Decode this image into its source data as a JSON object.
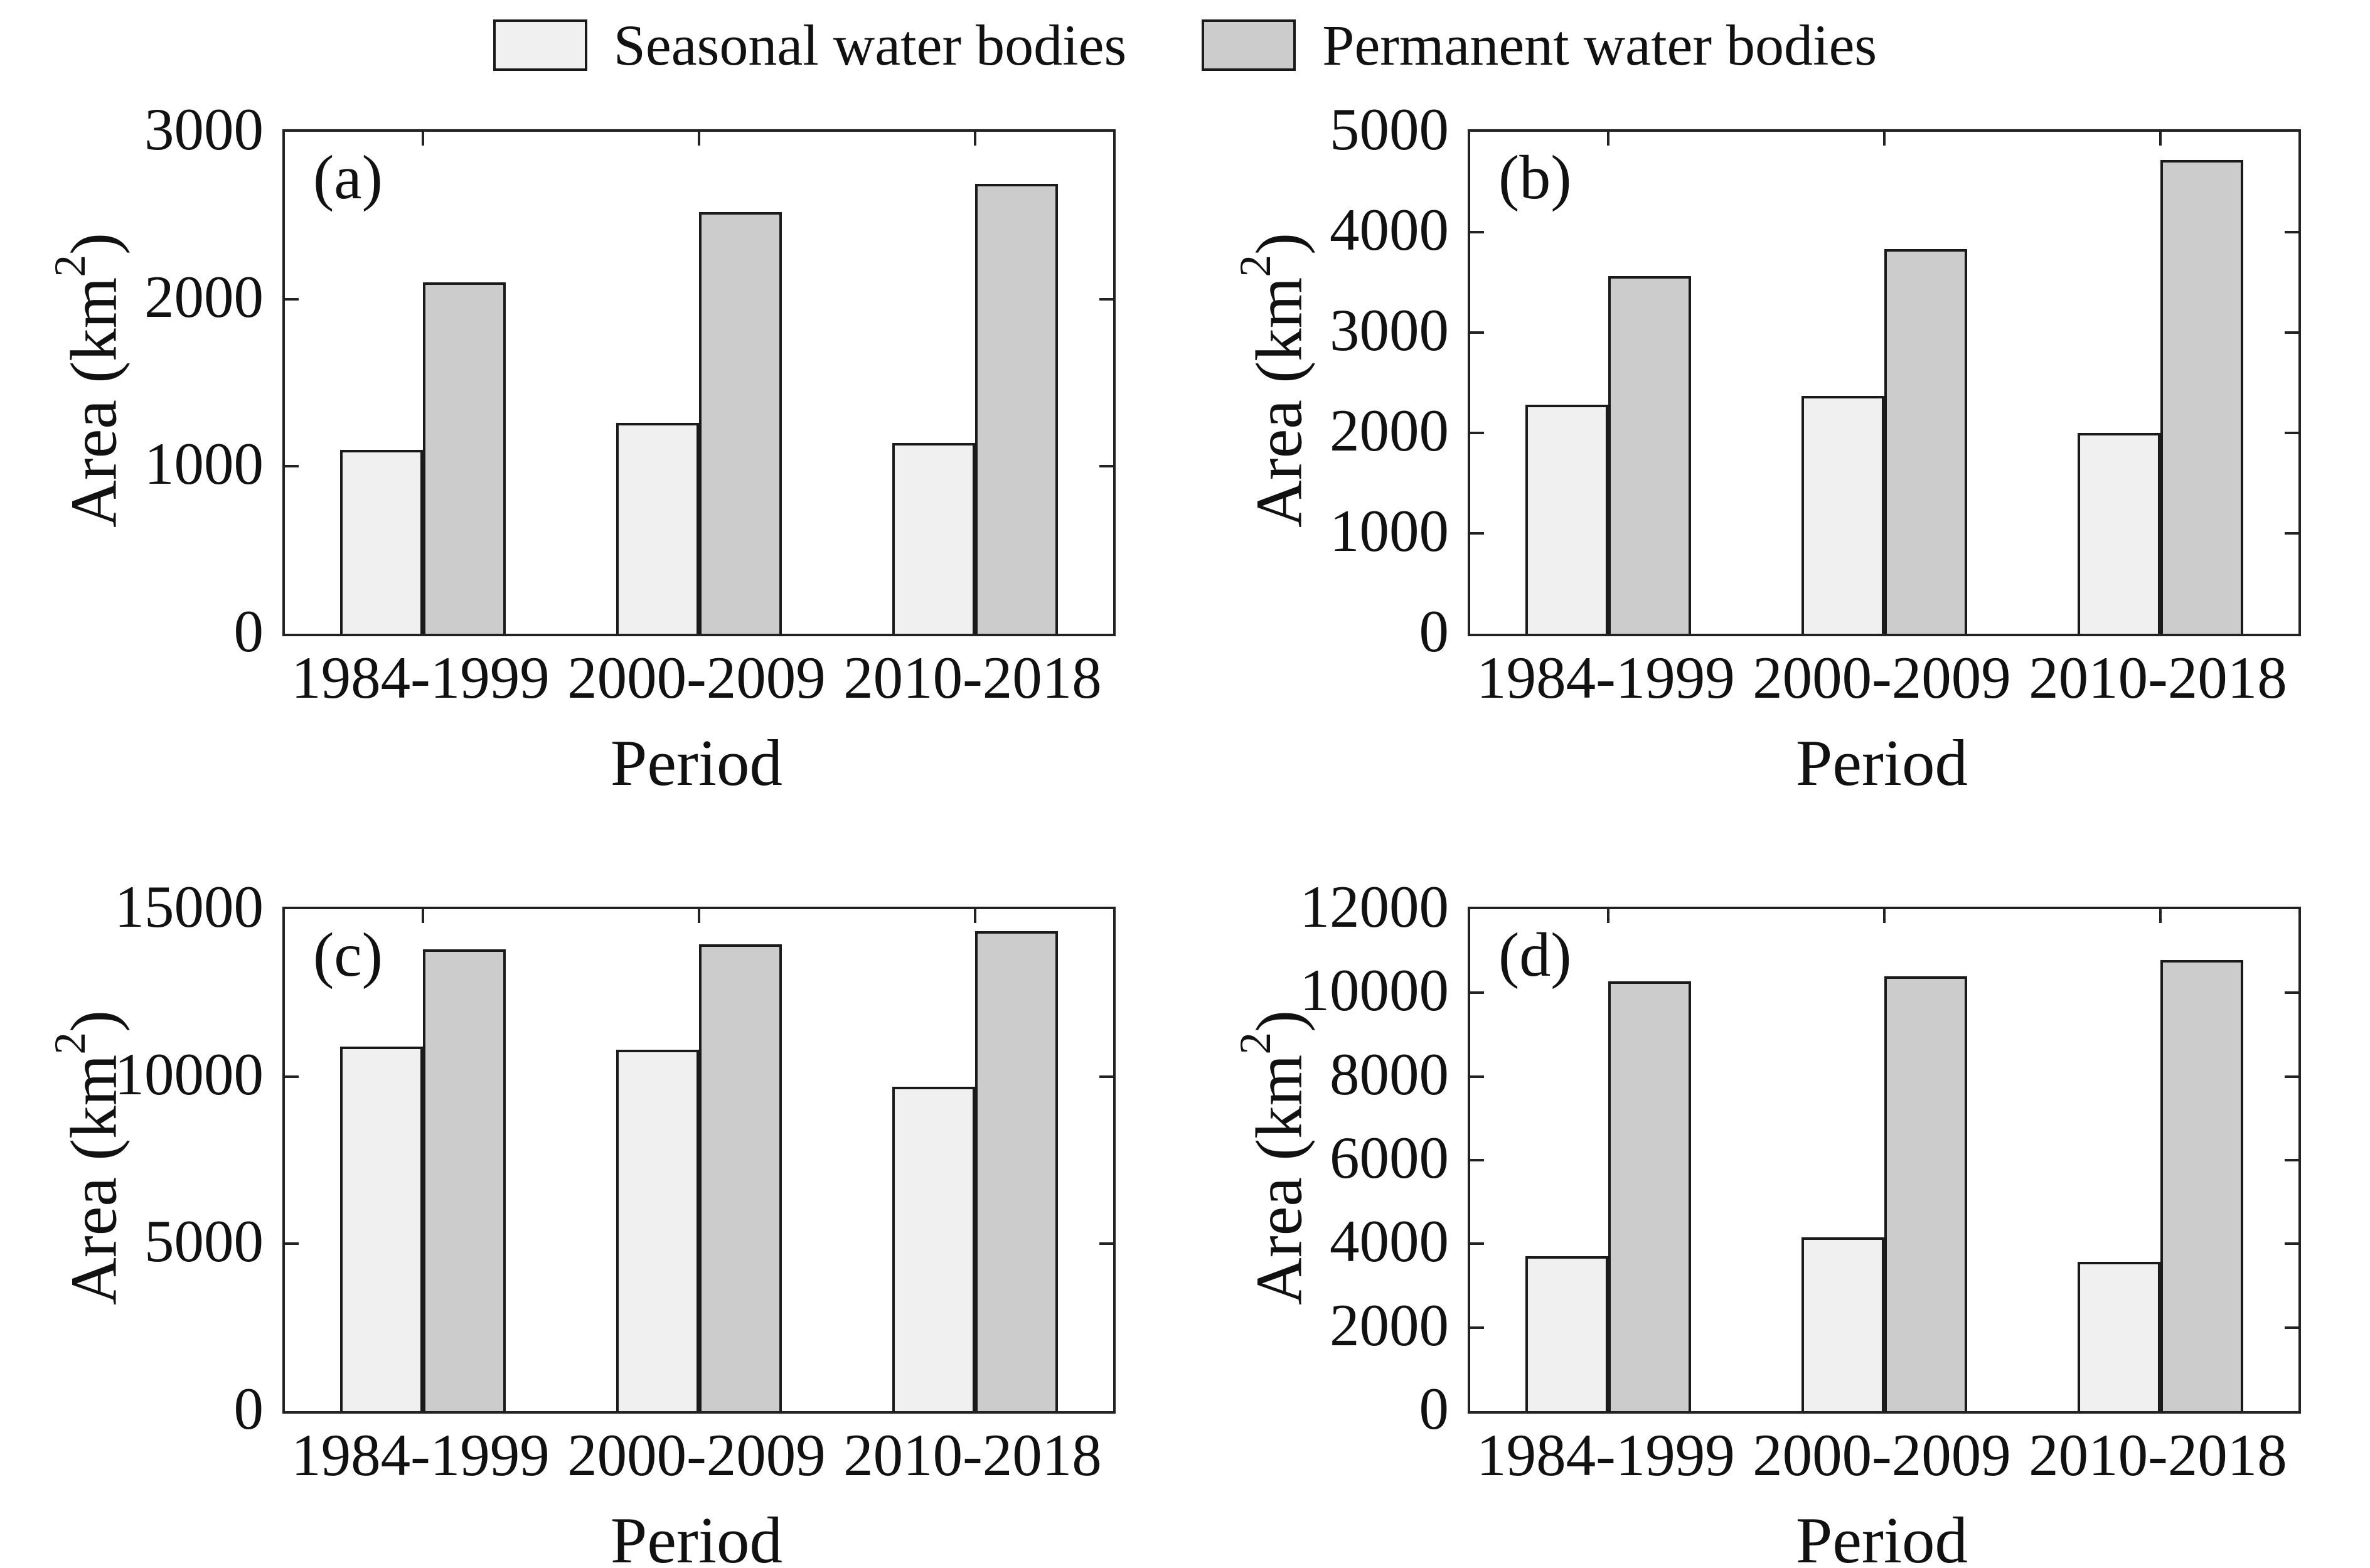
{
  "figure": {
    "background": "#ffffff"
  },
  "legend": {
    "items": [
      {
        "label": "Seasonal water bodies",
        "color": "#f0f0f0"
      },
      {
        "label": "Permanent water bodies",
        "color": "#cccccc"
      }
    ]
  },
  "axes_shared": {
    "xlabel": "Period",
    "ylabel": {
      "text": "Area (km²)",
      "pre": "Area (km",
      "sup": "2",
      "post": ")"
    }
  },
  "style": {
    "bar_colors": [
      "#f0f0f0",
      "#cccccc"
    ],
    "edge_color": "#1a1a1a",
    "axis_color": "#222222"
  },
  "chart_data": [
    {
      "type": "bar",
      "panel_label": "(a)",
      "categories": [
        "1984-1999",
        "2000-2009",
        "2010-2018"
      ],
      "series": [
        {
          "name": "Seasonal water bodies",
          "values": [
            1100,
            1260,
            1140
          ]
        },
        {
          "name": "Permanent water bodies",
          "values": [
            2100,
            2520,
            2690
          ]
        }
      ],
      "xlabel": "Period",
      "ylabel": "Area (km²)",
      "ylim": [
        0,
        3000
      ],
      "yticks": [
        0,
        1000,
        2000,
        3000
      ],
      "grid": false,
      "legend_position": "top-shared"
    },
    {
      "type": "bar",
      "panel_label": "(b)",
      "categories": [
        "1984-1999",
        "2000-2009",
        "2010-2018"
      ],
      "series": [
        {
          "name": "Seasonal water bodies",
          "values": [
            2280,
            2370,
            2000
          ]
        },
        {
          "name": "Permanent water bodies",
          "values": [
            3560,
            3830,
            4720
          ]
        }
      ],
      "xlabel": "Period",
      "ylabel": "Area (km²)",
      "ylim": [
        0,
        5000
      ],
      "yticks": [
        0,
        1000,
        2000,
        3000,
        4000,
        5000
      ],
      "grid": false,
      "legend_position": "top-shared"
    },
    {
      "type": "bar",
      "panel_label": "(c)",
      "categories": [
        "1984-1999",
        "2000-2009",
        "2010-2018"
      ],
      "series": [
        {
          "name": "Seasonal water bodies",
          "values": [
            10900,
            10800,
            9700
          ]
        },
        {
          "name": "Permanent water bodies",
          "values": [
            13800,
            13950,
            14350
          ]
        }
      ],
      "xlabel": "Period",
      "ylabel": "Area (km²)",
      "ylim": [
        0,
        15000
      ],
      "yticks": [
        0,
        5000,
        10000,
        15000
      ],
      "grid": false,
      "legend_position": "top-shared"
    },
    {
      "type": "bar",
      "panel_label": "(d)",
      "categories": [
        "1984-1999",
        "2000-2009",
        "2010-2018"
      ],
      "series": [
        {
          "name": "Seasonal water bodies",
          "values": [
            3700,
            4150,
            3570
          ]
        },
        {
          "name": "Permanent water bodies",
          "values": [
            10270,
            10390,
            10780
          ]
        }
      ],
      "xlabel": "Period",
      "ylabel": "Area (km²)",
      "ylim": [
        0,
        12000
      ],
      "yticks": [
        0,
        2000,
        4000,
        6000,
        8000,
        10000,
        12000
      ],
      "grid": false,
      "legend_position": "top-shared"
    }
  ]
}
